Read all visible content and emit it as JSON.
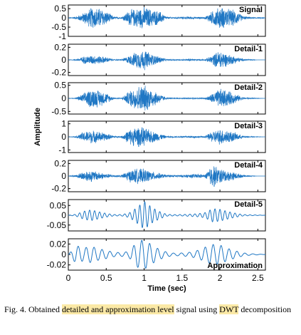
{
  "chart_data": {
    "type": "line",
    "xlabel": "Time (sec)",
    "ylabel": "Amplitude",
    "xlim": [
      0,
      2.6
    ],
    "xticks": [
      0,
      0.5,
      1,
      1.5,
      2,
      2.5
    ],
    "xtick_labels": [
      "0",
      "0.5",
      "1",
      "1.5",
      "2",
      "2.5"
    ],
    "line_color": "#1f77c4",
    "panels": [
      {
        "label": "Signal",
        "ylim": [
          -1,
          0.7
        ],
        "yticks": [
          0.5,
          0,
          -0.5,
          -1
        ],
        "ytick_labels": [
          "0.5",
          "0",
          "-0.5",
          "-1"
        ],
        "envelope": [
          0.0,
          0.07,
          0.3,
          0.6,
          0.6,
          0.4,
          0.08,
          0.03,
          0.45,
          0.55,
          0.65,
          0.5,
          0.4,
          0.06,
          0.04,
          0.06,
          0.08,
          0.06,
          0.05,
          0.4,
          0.65,
          0.55,
          0.45,
          0.12,
          0.05,
          0.03,
          0.02
        ]
      },
      {
        "label": "Detail-1",
        "ylim": [
          -0.25,
          0.25
        ],
        "yticks": [
          0.2,
          0,
          -0.2
        ],
        "ytick_labels": [
          "0.2",
          "0",
          "-0.2"
        ],
        "envelope": [
          0.0,
          0.01,
          0.06,
          0.08,
          0.07,
          0.05,
          0.01,
          0.01,
          0.07,
          0.14,
          0.18,
          0.1,
          0.06,
          0.01,
          0.01,
          0.01,
          0.02,
          0.01,
          0.01,
          0.08,
          0.17,
          0.1,
          0.06,
          0.02,
          0.01,
          0.0,
          0.0
        ]
      },
      {
        "label": "Detail-2",
        "ylim": [
          -0.6,
          0.6
        ],
        "yticks": [
          0.5,
          0,
          -0.5
        ],
        "ytick_labels": [
          "0.5",
          "0",
          "-0.5"
        ],
        "envelope": [
          0.0,
          0.02,
          0.2,
          0.4,
          0.35,
          0.22,
          0.03,
          0.02,
          0.3,
          0.5,
          0.56,
          0.38,
          0.2,
          0.02,
          0.02,
          0.02,
          0.03,
          0.02,
          0.02,
          0.2,
          0.4,
          0.32,
          0.2,
          0.05,
          0.02,
          0.01,
          0.0
        ]
      },
      {
        "label": "Detail-3",
        "ylim": [
          -1.2,
          1.2
        ],
        "yticks": [
          1,
          0,
          -1
        ],
        "ytick_labels": [
          "1",
          "0",
          "-1"
        ],
        "envelope": [
          0.0,
          0.05,
          0.4,
          0.55,
          0.45,
          0.3,
          0.08,
          0.06,
          0.6,
          0.85,
          0.75,
          0.5,
          0.3,
          0.06,
          0.05,
          0.06,
          0.1,
          0.08,
          0.06,
          0.45,
          0.65,
          0.55,
          0.35,
          0.1,
          0.04,
          0.02,
          0.0
        ]
      },
      {
        "label": "Detail-4",
        "ylim": [
          -0.25,
          0.25
        ],
        "yticks": [
          0.2,
          0,
          -0.2
        ],
        "ytick_labels": [
          "0.2",
          "0",
          "-0.2"
        ],
        "envelope": [
          0.0,
          0.02,
          0.08,
          0.1,
          0.07,
          0.04,
          0.02,
          0.02,
          0.1,
          0.13,
          0.12,
          0.08,
          0.05,
          0.02,
          0.02,
          0.02,
          0.03,
          0.04,
          0.02,
          0.21,
          0.13,
          0.09,
          0.06,
          0.02,
          0.01,
          0.0,
          0.0
        ]
      },
      {
        "label": "Detail-5",
        "ylim": [
          -0.08,
          0.08
        ],
        "yticks": [
          0.05,
          0,
          -0.05
        ],
        "ytick_labels": [
          "0.05",
          "0",
          "-0.05"
        ],
        "envelope": [
          0.0,
          0.005,
          0.02,
          0.028,
          0.02,
          0.012,
          0.005,
          0.005,
          0.015,
          0.045,
          0.075,
          0.04,
          0.02,
          0.005,
          0.004,
          0.005,
          0.008,
          0.01,
          0.015,
          0.035,
          0.03,
          0.02,
          0.012,
          0.005,
          0.003,
          0.002,
          0.0
        ]
      },
      {
        "label": "Approximation",
        "ylim": [
          -0.03,
          0.03
        ],
        "yticks": [
          0.02,
          0,
          -0.02
        ],
        "ytick_labels": [
          "0.02",
          "0",
          "-0.02"
        ],
        "envelope": [
          0.0,
          0.018,
          0.012,
          0.016,
          0.012,
          0.01,
          0.006,
          0.005,
          0.008,
          0.028,
          0.03,
          0.018,
          0.01,
          0.005,
          0.003,
          0.004,
          0.006,
          0.01,
          0.016,
          0.02,
          0.018,
          0.012,
          0.008,
          0.004,
          0.002,
          0.001,
          0.0
        ]
      }
    ]
  },
  "caption": {
    "prefix": "Fig. 4.    Obtained ",
    "highlight1": "detailed and approximation level",
    "middle": " signal using ",
    "highlight2": "DWT",
    "suffix": " decomposition"
  }
}
